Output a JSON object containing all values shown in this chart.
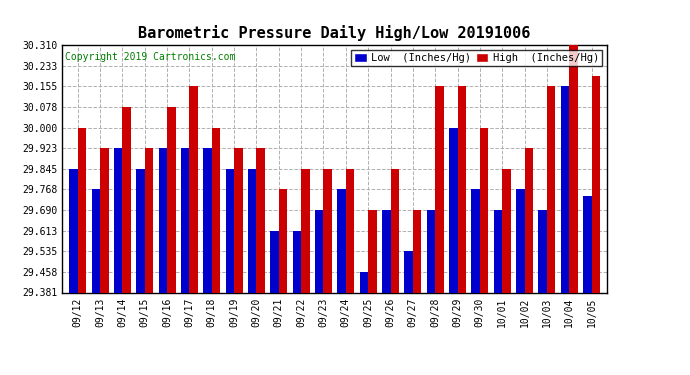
{
  "title": "Barometric Pressure Daily High/Low 20191006",
  "copyright": "Copyright 2019 Cartronics.com",
  "legend_low": "Low  (Inches/Hg)",
  "legend_high": "High  (Inches/Hg)",
  "ylabel_values": [
    29.381,
    29.458,
    29.535,
    29.613,
    29.69,
    29.768,
    29.845,
    29.923,
    30.0,
    30.078,
    30.155,
    30.233,
    30.31
  ],
  "dates": [
    "09/12",
    "09/13",
    "09/14",
    "09/15",
    "09/16",
    "09/17",
    "09/18",
    "09/19",
    "09/20",
    "09/21",
    "09/22",
    "09/23",
    "09/24",
    "09/25",
    "09/26",
    "09/27",
    "09/28",
    "09/29",
    "09/30",
    "10/01",
    "10/02",
    "10/03",
    "10/04",
    "10/05"
  ],
  "low_values": [
    29.845,
    29.768,
    29.923,
    29.845,
    29.923,
    29.923,
    29.923,
    29.845,
    29.845,
    29.613,
    29.613,
    29.69,
    29.768,
    29.458,
    29.69,
    29.535,
    29.69,
    30.0,
    29.768,
    29.69,
    29.768,
    29.69,
    30.155,
    29.745
  ],
  "high_values": [
    30.0,
    29.923,
    30.078,
    29.923,
    30.078,
    30.155,
    30.0,
    29.923,
    29.923,
    29.768,
    29.845,
    29.845,
    29.845,
    29.69,
    29.845,
    29.69,
    30.155,
    30.155,
    30.0,
    29.845,
    29.923,
    30.155,
    30.31,
    30.195
  ],
  "bar_color_low": "#0000cc",
  "bar_color_high": "#cc0000",
  "background_color": "#ffffff",
  "grid_color": "#b0b0b0",
  "ylim_min": 29.381,
  "ylim_max": 30.31,
  "title_fontsize": 11,
  "copyright_fontsize": 7,
  "tick_fontsize": 7,
  "legend_fontsize": 7.5
}
